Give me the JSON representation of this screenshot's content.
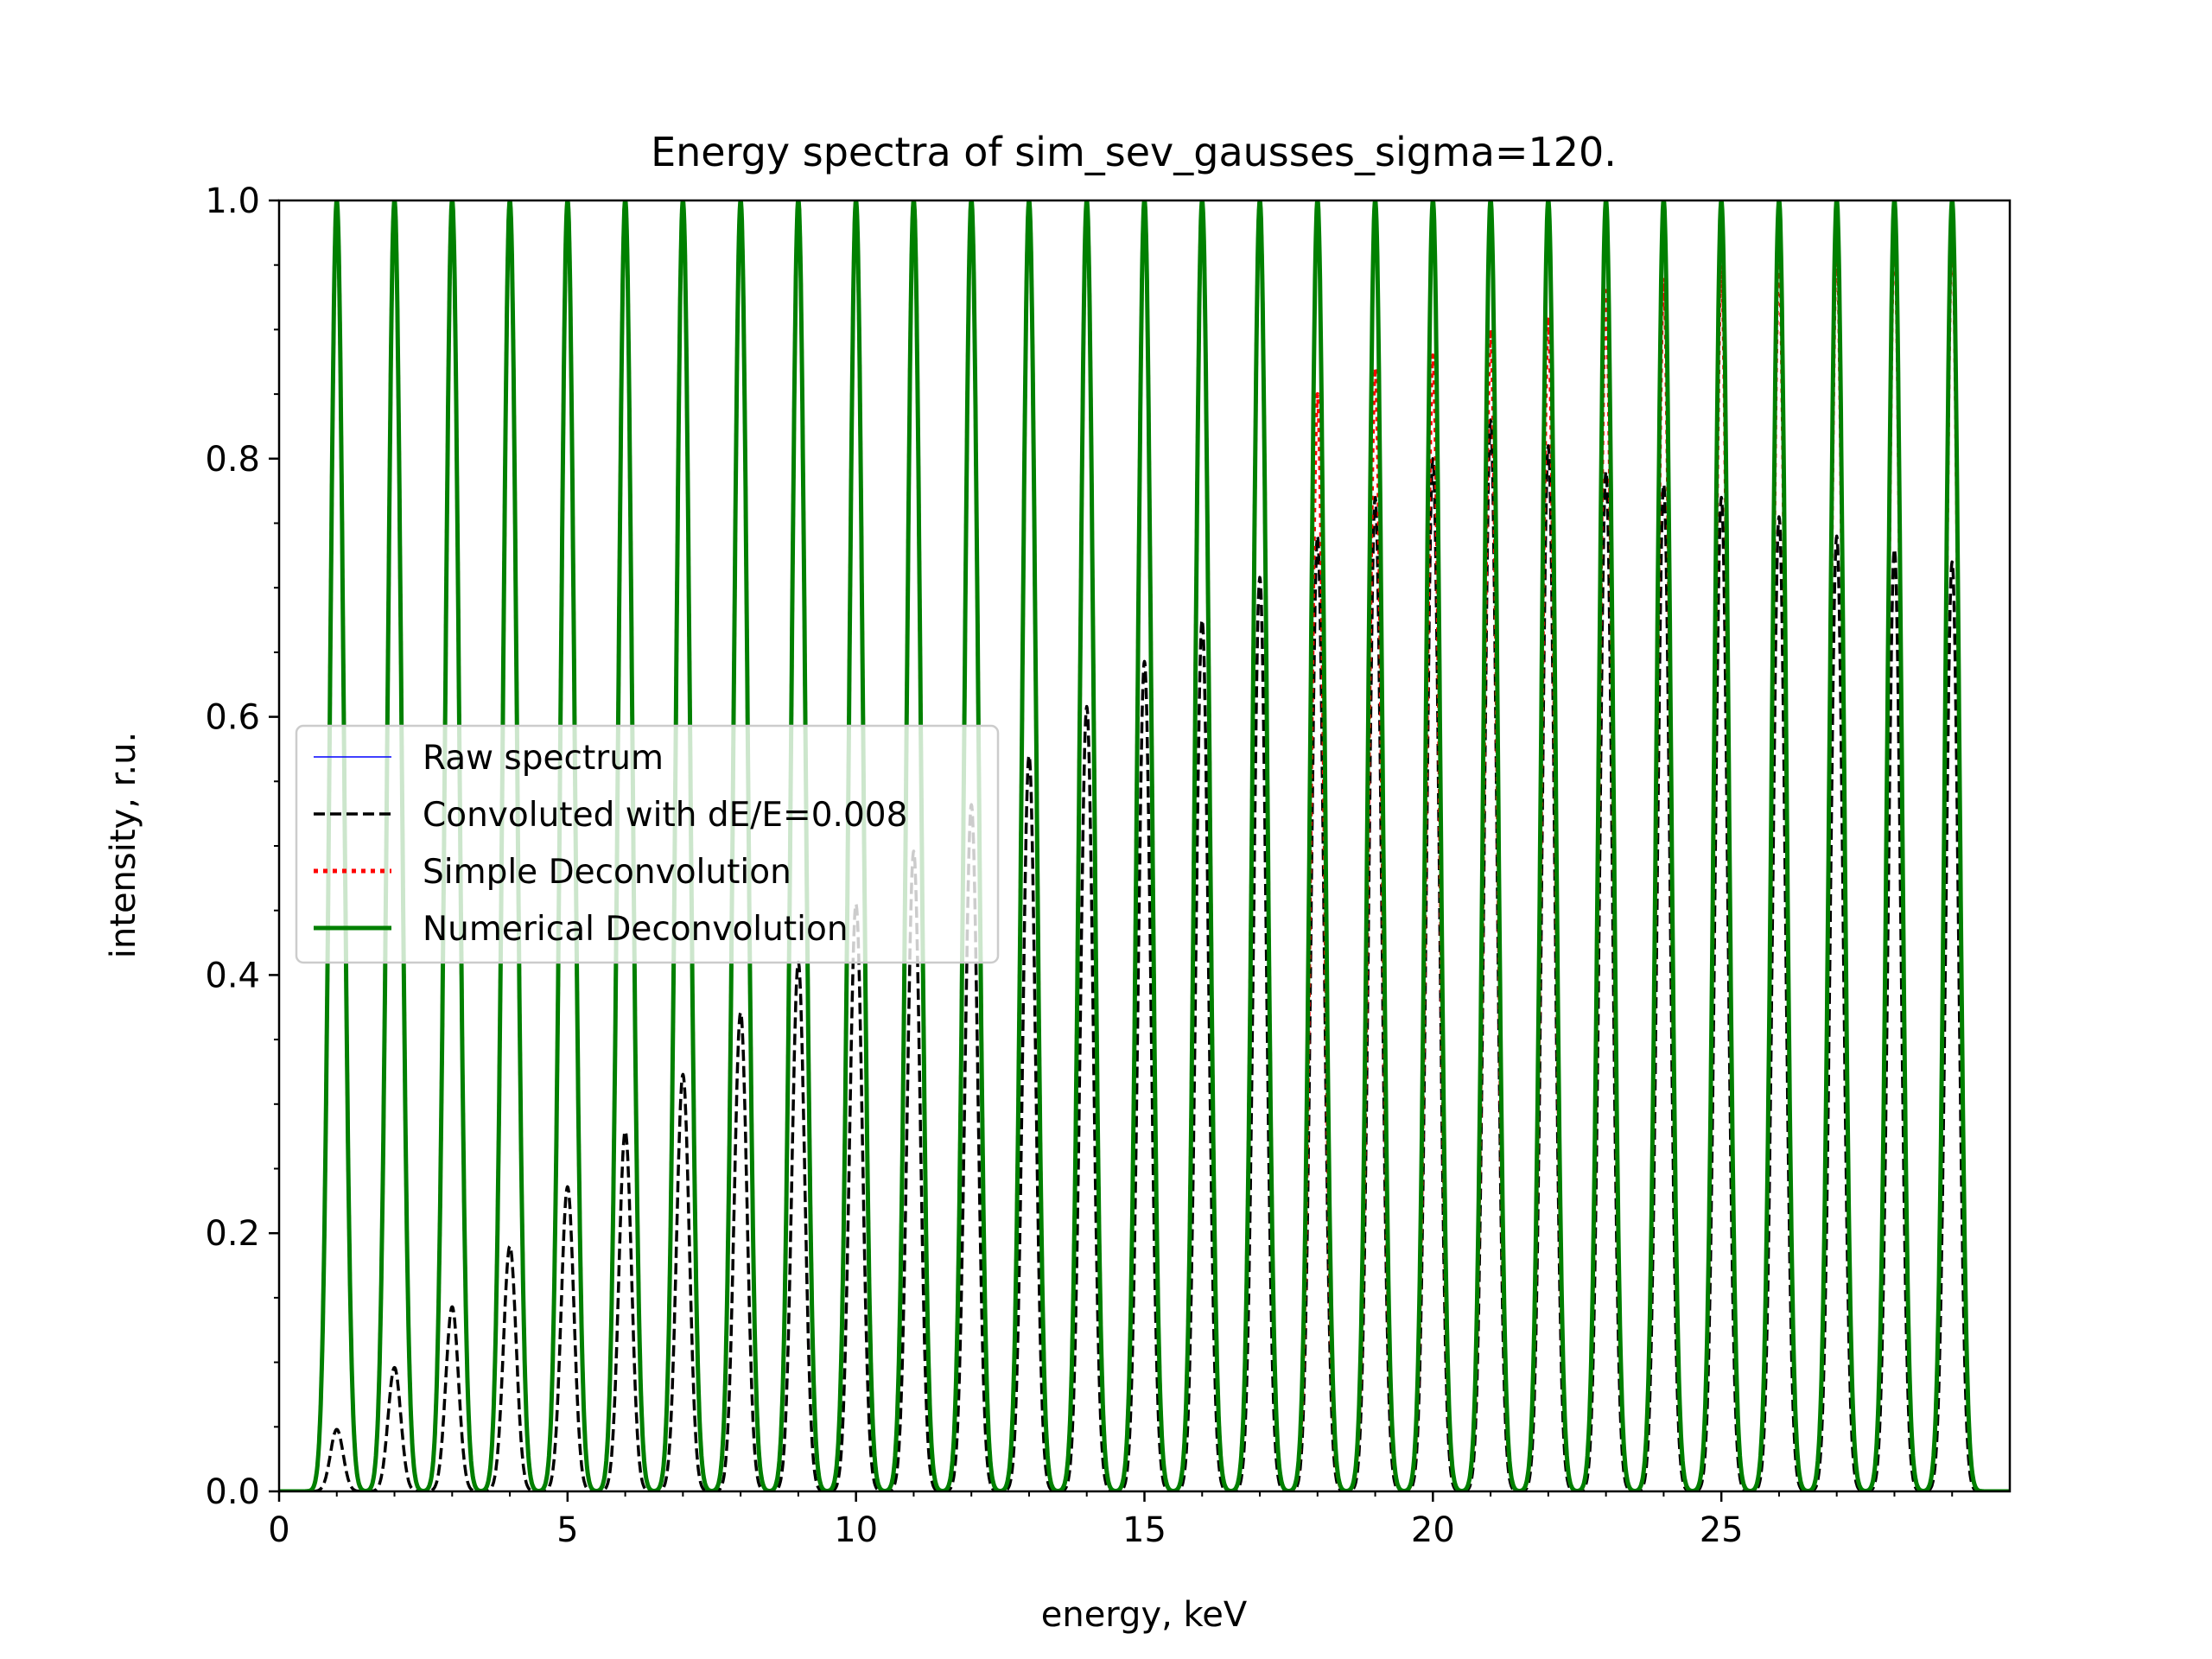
{
  "chart_data": {
    "type": "line",
    "title": "Energy spectra of sim_sev_gausses_sigma=120.",
    "xlabel": "energy, keV",
    "ylabel": "intensity, r.u.",
    "xlim": [
      0,
      30
    ],
    "ylim": [
      0,
      1.0
    ],
    "x_ticks": [
      0,
      5,
      10,
      15,
      20,
      25
    ],
    "x_tick_labels": [
      "0",
      "5",
      "10",
      "15",
      "20",
      "25"
    ],
    "y_ticks": [
      0.0,
      0.2,
      0.4,
      0.6,
      0.8,
      1.0
    ],
    "y_tick_labels": [
      "0.0",
      "0.2",
      "0.4",
      "0.6",
      "0.8",
      "1.0"
    ],
    "grid": false,
    "legend_position": "center-left",
    "peak_centers_keV": [
      1,
      2,
      3,
      4,
      5,
      6,
      7,
      8,
      9,
      10,
      11,
      12,
      13,
      14,
      15,
      16,
      17,
      18,
      19,
      20,
      21,
      22,
      23,
      24,
      25,
      26,
      27,
      28,
      29
    ],
    "series": [
      {
        "name": "Raw spectrum",
        "color": "#0000ff",
        "style": "solid-thin",
        "peak_heights": [
          1,
          1,
          1,
          1,
          1,
          1,
          1,
          1,
          1,
          1,
          1,
          1,
          1,
          1,
          1,
          1,
          1,
          1,
          1,
          1,
          1,
          1,
          1,
          1,
          1,
          1,
          1,
          1,
          1
        ]
      },
      {
        "name": "Convoluted with dE/E=0.008",
        "color": "#000000",
        "style": "dashed",
        "peak_heights": [
          0.048,
          0.096,
          0.143,
          0.19,
          0.236,
          0.279,
          0.323,
          0.371,
          0.41,
          0.455,
          0.496,
          0.532,
          0.57,
          0.608,
          0.643,
          0.675,
          0.708,
          0.74,
          0.77,
          0.8,
          0.83,
          0.81,
          0.79,
          0.78,
          0.77,
          0.755,
          0.74,
          0.73,
          0.72
        ]
      },
      {
        "name": "Simple Deconvolution",
        "color": "#ff0000",
        "style": "dotted",
        "peak_heights": [
          1,
          1,
          1,
          1,
          1,
          1,
          1,
          1,
          1,
          1,
          1,
          1,
          1,
          1,
          1,
          1,
          1,
          0.85,
          0.87,
          0.88,
          0.9,
          0.91,
          0.93,
          0.94,
          0.95,
          0.96,
          0.97,
          0.98,
          0.98
        ]
      },
      {
        "name": "Numerical Deconvolution",
        "color": "#008000",
        "style": "solid-thick",
        "peak_heights": [
          1,
          1,
          1,
          1,
          1,
          1,
          1,
          1,
          1,
          1,
          1,
          1,
          1,
          1,
          1,
          1,
          1,
          1,
          1,
          1,
          1,
          1,
          1,
          1,
          1,
          1,
          1,
          1,
          1
        ]
      }
    ]
  }
}
